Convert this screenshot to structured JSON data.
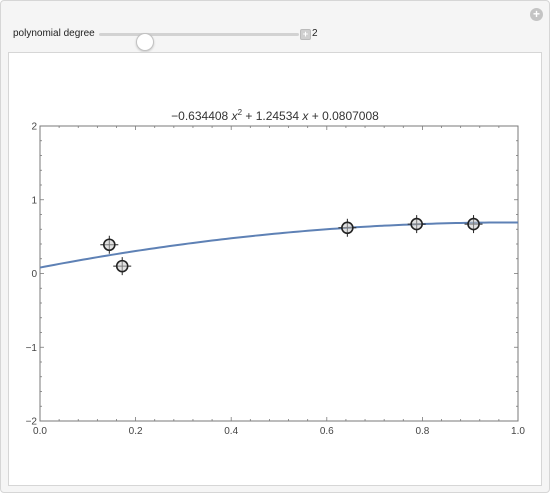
{
  "controls": {
    "label": "polynomial degree",
    "value": "2",
    "degree_min": 0,
    "degree_max": 10,
    "degree": 2
  },
  "icons": {
    "corner": "plus-circle-icon",
    "increment": "plus-square-icon"
  },
  "plot": {
    "title_parts": {
      "a": "−0.634408",
      "x": "x",
      "exp": "2",
      "b": "+ 1.24534",
      "c": "+ 0.0807008"
    }
  },
  "chart_data": {
    "type": "scatter",
    "title": "−0.634408 x² + 1.24534 x + 0.0807008",
    "xlabel": "",
    "ylabel": "",
    "xlim": [
      0,
      1
    ],
    "ylim": [
      -2,
      2
    ],
    "xticks": [
      "0.0",
      "0.2",
      "0.4",
      "0.6",
      "0.8",
      "1.0"
    ],
    "yticks": [
      "−2",
      "−1",
      "0",
      "1",
      "2"
    ],
    "points": [
      {
        "x": 0.145,
        "y": 0.39
      },
      {
        "x": 0.172,
        "y": 0.1
      },
      {
        "x": 0.643,
        "y": 0.62
      },
      {
        "x": 0.788,
        "y": 0.67
      },
      {
        "x": 0.907,
        "y": 0.67
      }
    ],
    "fit": {
      "a": -0.634408,
      "b": 1.24534,
      "c": 0.0807008
    },
    "colors": {
      "curve": "#5e81b5",
      "point": "#222222",
      "axis": "#7a7a7a"
    }
  }
}
